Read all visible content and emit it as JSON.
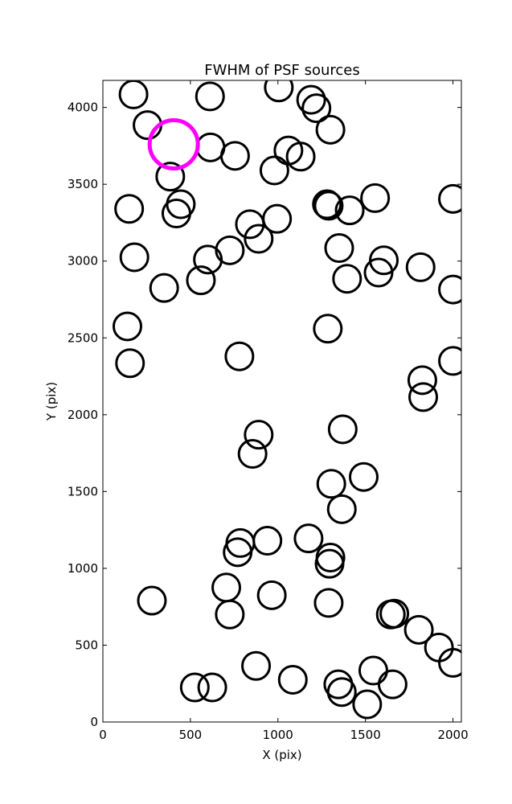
{
  "chart_data": {
    "type": "scatter",
    "title": "FWHM of PSF sources",
    "xlabel": "X (pix)",
    "ylabel": "Y (pix)",
    "xlim": [
      0,
      2048
    ],
    "ylim": [
      0,
      4176
    ],
    "xticks": [
      0,
      500,
      1000,
      1500,
      2000
    ],
    "yticks": [
      0,
      500,
      1000,
      1500,
      2000,
      2500,
      3000,
      3500,
      4000
    ],
    "grid": false,
    "legend": "none",
    "marker": "open circle",
    "series": [
      {
        "color": "#000000",
        "points": [
          {
            "x": 175,
            "y": 4085
          },
          {
            "x": 612,
            "y": 4072
          },
          {
            "x": 1005,
            "y": 4130
          },
          {
            "x": 1190,
            "y": 4050
          },
          {
            "x": 1220,
            "y": 3995
          },
          {
            "x": 1300,
            "y": 3855
          },
          {
            "x": 255,
            "y": 3885
          },
          {
            "x": 615,
            "y": 3740
          },
          {
            "x": 755,
            "y": 3685
          },
          {
            "x": 1060,
            "y": 3720
          },
          {
            "x": 1130,
            "y": 3680
          },
          {
            "x": 980,
            "y": 3590
          },
          {
            "x": 385,
            "y": 3550
          },
          {
            "x": 445,
            "y": 3370
          },
          {
            "x": 420,
            "y": 3310
          },
          {
            "x": 150,
            "y": 3340
          },
          {
            "x": 1280,
            "y": 3370
          },
          {
            "x": 1290,
            "y": 3360
          },
          {
            "x": 1410,
            "y": 3330
          },
          {
            "x": 1555,
            "y": 3410
          },
          {
            "x": 2000,
            "y": 3405
          },
          {
            "x": 840,
            "y": 3240
          },
          {
            "x": 890,
            "y": 3145
          },
          {
            "x": 995,
            "y": 3275
          },
          {
            "x": 725,
            "y": 3070
          },
          {
            "x": 600,
            "y": 3010
          },
          {
            "x": 180,
            "y": 3025
          },
          {
            "x": 1350,
            "y": 3085
          },
          {
            "x": 1605,
            "y": 3005
          },
          {
            "x": 1575,
            "y": 2925
          },
          {
            "x": 1815,
            "y": 2960
          },
          {
            "x": 2000,
            "y": 2815
          },
          {
            "x": 1395,
            "y": 2885
          },
          {
            "x": 560,
            "y": 2875
          },
          {
            "x": 350,
            "y": 2825
          },
          {
            "x": 140,
            "y": 2575
          },
          {
            "x": 155,
            "y": 2335
          },
          {
            "x": 1285,
            "y": 2560
          },
          {
            "x": 780,
            "y": 2380
          },
          {
            "x": 2000,
            "y": 2350
          },
          {
            "x": 1825,
            "y": 2225
          },
          {
            "x": 1830,
            "y": 2115
          },
          {
            "x": 1370,
            "y": 1905
          },
          {
            "x": 890,
            "y": 1870
          },
          {
            "x": 855,
            "y": 1745
          },
          {
            "x": 1490,
            "y": 1595
          },
          {
            "x": 1305,
            "y": 1550
          },
          {
            "x": 1365,
            "y": 1385
          },
          {
            "x": 1175,
            "y": 1195
          },
          {
            "x": 940,
            "y": 1180
          },
          {
            "x": 785,
            "y": 1165
          },
          {
            "x": 770,
            "y": 1105
          },
          {
            "x": 1300,
            "y": 1070
          },
          {
            "x": 1295,
            "y": 1030
          },
          {
            "x": 705,
            "y": 875
          },
          {
            "x": 965,
            "y": 825
          },
          {
            "x": 1290,
            "y": 775
          },
          {
            "x": 280,
            "y": 790
          },
          {
            "x": 725,
            "y": 700
          },
          {
            "x": 1645,
            "y": 700
          },
          {
            "x": 1665,
            "y": 705
          },
          {
            "x": 1805,
            "y": 600
          },
          {
            "x": 1920,
            "y": 485
          },
          {
            "x": 2000,
            "y": 385
          },
          {
            "x": 875,
            "y": 365
          },
          {
            "x": 1085,
            "y": 275
          },
          {
            "x": 1345,
            "y": 245
          },
          {
            "x": 1365,
            "y": 195
          },
          {
            "x": 1545,
            "y": 335
          },
          {
            "x": 1655,
            "y": 245
          },
          {
            "x": 1510,
            "y": 115
          },
          {
            "x": 525,
            "y": 225
          },
          {
            "x": 625,
            "y": 225
          }
        ]
      },
      {
        "color": "#ff00ff",
        "points": [
          {
            "x": 405,
            "y": 3760
          }
        ]
      }
    ]
  }
}
